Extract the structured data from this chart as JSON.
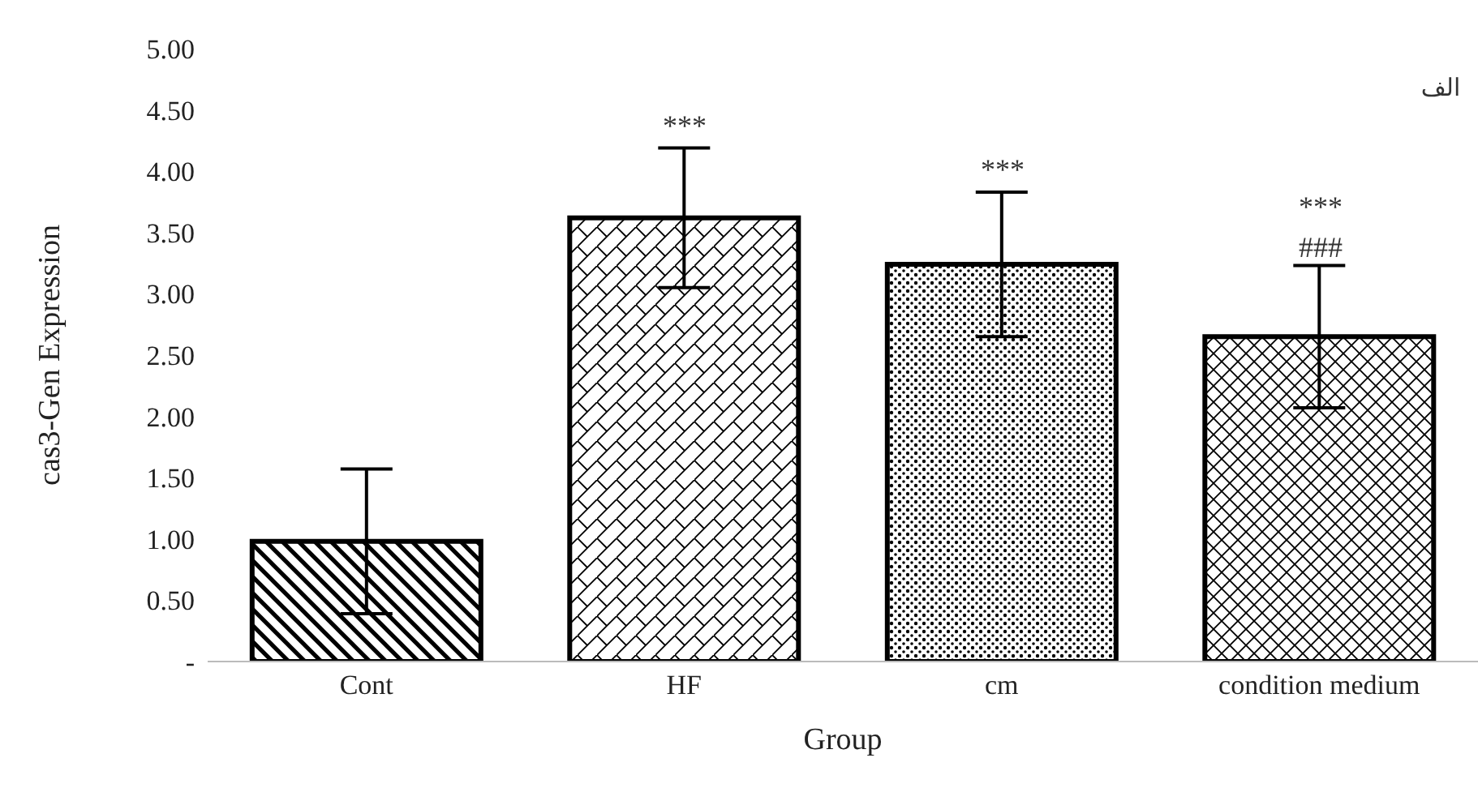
{
  "chart_data": {
    "type": "bar",
    "xlabel": "Group",
    "ylabel": "cas3-Gen Expression",
    "categories": [
      "Cont",
      "HF",
      "cm",
      "condition medium"
    ],
    "values": [
      0.98,
      3.62,
      3.24,
      2.65
    ],
    "errors": [
      0.59,
      0.57,
      0.59,
      0.58
    ],
    "colors": [
      "#000000",
      "#000000",
      "#000000",
      "#000000"
    ],
    "ylim": [
      0,
      5
    ],
    "yticks": [
      {
        "value": 0,
        "label": "-"
      },
      {
        "value": 0.5,
        "label": "0.50"
      },
      {
        "value": 1,
        "label": "1.00"
      },
      {
        "value": 1.5,
        "label": "1.50"
      },
      {
        "value": 2,
        "label": "2.00"
      },
      {
        "value": 2.5,
        "label": "2.50"
      },
      {
        "value": 3,
        "label": "3.00"
      },
      {
        "value": 3.5,
        "label": "3.50"
      },
      {
        "value": 4,
        "label": "4.00"
      },
      {
        "value": 4.5,
        "label": "4.50"
      },
      {
        "value": 5,
        "label": "5.00"
      }
    ],
    "grid": false,
    "legend": false,
    "annotations": [
      "***",
      "***",
      "***",
      "###",
      "الف"
    ]
  }
}
